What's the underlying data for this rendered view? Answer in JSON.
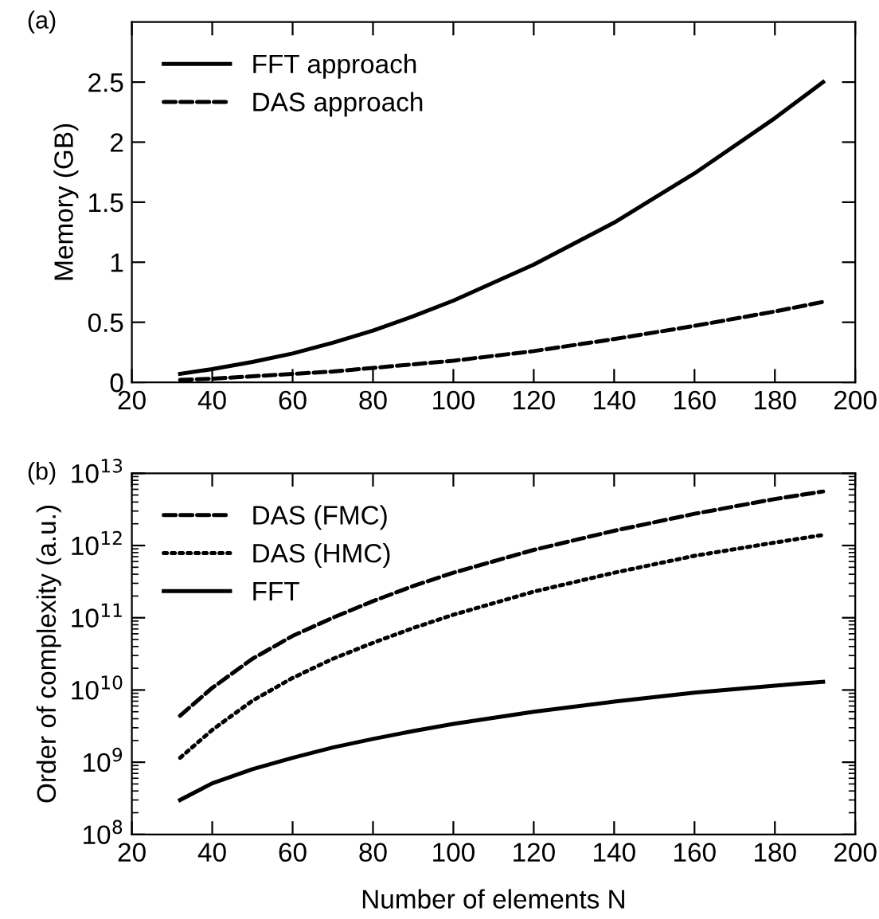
{
  "chart_data": [
    {
      "type": "line",
      "annotations": [
        "(a)"
      ],
      "ylabel": "Memory (GB)",
      "xlim": [
        20,
        200
      ],
      "xticks": [
        20,
        40,
        60,
        80,
        100,
        120,
        140,
        160,
        180,
        200
      ],
      "ylim": [
        0,
        3
      ],
      "yticks": [
        0,
        0.5,
        1,
        1.5,
        2,
        2.5
      ],
      "legend": "top left",
      "grid": false,
      "x": [
        32,
        40,
        50,
        60,
        70,
        80,
        90,
        100,
        120,
        140,
        160,
        180,
        192
      ],
      "series": [
        {
          "name": "FFT approach",
          "color": "#000000",
          "line_style": "solid",
          "values": [
            0.07,
            0.11,
            0.17,
            0.24,
            0.33,
            0.43,
            0.55,
            0.68,
            0.98,
            1.33,
            1.74,
            2.2,
            2.5
          ]
        },
        {
          "name": "DAS approach",
          "color": "#000000",
          "line_style": "dashed",
          "values": [
            0.02,
            0.03,
            0.05,
            0.07,
            0.09,
            0.12,
            0.15,
            0.18,
            0.26,
            0.36,
            0.47,
            0.59,
            0.67
          ]
        }
      ]
    },
    {
      "type": "line",
      "annotations": [
        "(b)"
      ],
      "xlabel": "Number of elements N",
      "ylabel": "Order of complexity (a.u.)",
      "log": "y",
      "xlim": [
        20,
        200
      ],
      "xticks": [
        20,
        40,
        60,
        80,
        100,
        120,
        140,
        160,
        180,
        200
      ],
      "ylim": [
        100000000.0,
        10000000000000.0
      ],
      "yticks": [
        {
          "value": 100000000.0,
          "label": "10$^{8}$"
        },
        {
          "value": 1000000000.0,
          "label": "10$^{9}$"
        },
        {
          "value": 10000000000.0,
          "label": "10$^{10}$"
        },
        {
          "value": 100000000000.0,
          "label": "10$^{11}$"
        },
        {
          "value": 1000000000000.0,
          "label": "10$^{12}$"
        },
        {
          "value": 10000000000000.0,
          "label": "10$^{13}$"
        }
      ],
      "legend": "top left",
      "grid": false,
      "x": [
        32,
        40,
        50,
        60,
        70,
        80,
        90,
        100,
        120,
        140,
        160,
        180,
        192
      ],
      "series": [
        {
          "name": "DAS (FMC)",
          "color": "#000000",
          "line_style": "dashed",
          "values": [
            4400000000.0,
            10700000000.0,
            27000000000.0,
            56000000000.0,
            100000000000.0,
            170000000000.0,
            275000000000.0,
            420000000000.0,
            870000000000.0,
            1600000000000.0,
            2750000000000.0,
            4400000000000.0,
            5600000000000.0
          ]
        },
        {
          "name": "DAS (HMC)",
          "color": "#000000",
          "line_style": "dotted",
          "values": [
            1150000000.0,
            2800000000.0,
            7100000000.0,
            14700000000.0,
            27000000000.0,
            45000000000.0,
            72000000000.0,
            110000000000.0,
            230000000000.0,
            420000000000.0,
            720000000000.0,
            1100000000000.0,
            1400000000000.0
          ]
        },
        {
          "name": "FFT",
          "color": "#000000",
          "line_style": "solid",
          "values": [
            300000000.0,
            510000000.0,
            800000000.0,
            1150000000.0,
            1600000000.0,
            2100000000.0,
            2700000000.0,
            3400000000.0,
            5000000000.0,
            6900000000.0,
            9200000000.0,
            11500000000.0,
            13000000000.0
          ]
        }
      ]
    }
  ]
}
